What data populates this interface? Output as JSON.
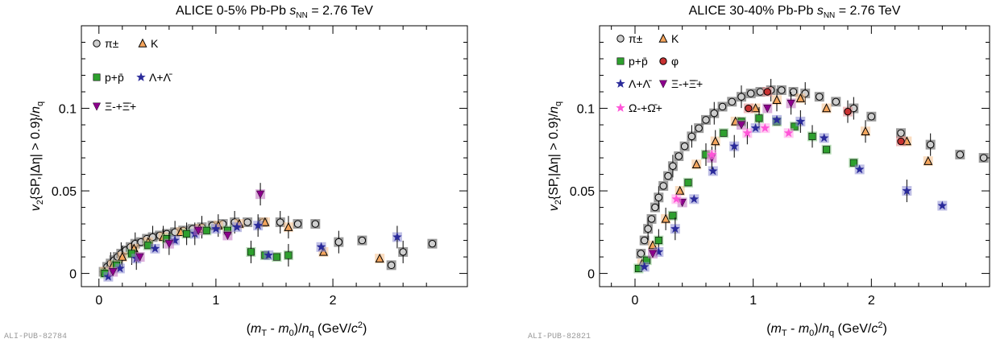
{
  "chart_data": [
    {
      "type": "scatter",
      "title": "ALICE 0-5% Pb-Pb √s_NN = 2.76 TeV",
      "title_parts": {
        "prefix": "ALICE 0-5% Pb-Pb",
        "s": "s",
        "sub": "NN",
        "suffix": " = 2.76 TeV"
      },
      "xlabel": "(m_T - m_0)/n_q (GeV/c^2)",
      "ylabel": "v_2{SP,|Δη| > 0.9}/n_q",
      "xlim": [
        -0.15,
        3.15
      ],
      "ylim": [
        -0.008,
        0.15
      ],
      "x_ticks": [
        0,
        1,
        2
      ],
      "y_ticks": [
        0,
        0.05,
        0.1
      ],
      "y_tick_labels": [
        "0",
        "0.05",
        "0.1"
      ],
      "watermark": "ALI-PUB-82784",
      "legend_position": "top-left",
      "series": [
        {
          "name": "π±",
          "marker": "circle",
          "color": "#cfcfcf",
          "syst_color": "#4a4a4a",
          "x": [
            0.04,
            0.07,
            0.1,
            0.13,
            0.16,
            0.19,
            0.23,
            0.27,
            0.31,
            0.36,
            0.41,
            0.46,
            0.52,
            0.58,
            0.65,
            0.72,
            0.8,
            0.88,
            0.97,
            1.06,
            1.16,
            1.27,
            1.4,
            1.55,
            1.7,
            1.85,
            2.05,
            2.25,
            2.5,
            2.6,
            2.85
          ],
          "y": [
            0.001,
            0.004,
            0.006,
            0.008,
            0.01,
            0.012,
            0.014,
            0.016,
            0.018,
            0.019,
            0.021,
            0.022,
            0.023,
            0.024,
            0.025,
            0.026,
            0.027,
            0.028,
            0.029,
            0.03,
            0.031,
            0.031,
            0.031,
            0.031,
            0.03,
            0.03,
            0.019,
            0.02,
            0.005,
            0.013,
            0.018
          ]
        },
        {
          "name": "K",
          "marker": "triangle",
          "color": "#f5a55c",
          "syst_color": "#f5c08a",
          "x": [
            0.05,
            0.12,
            0.2,
            0.3,
            0.42,
            0.55,
            0.7,
            0.86,
            1.02,
            1.2,
            1.42,
            1.62,
            1.92,
            2.4
          ],
          "y": [
            0.001,
            0.005,
            0.01,
            0.015,
            0.019,
            0.022,
            0.025,
            0.027,
            0.029,
            0.03,
            0.031,
            0.028,
            0.013,
            0.009
          ]
        },
        {
          "name": "p+p̄",
          "marker": "square",
          "color": "#2ea02e",
          "syst_color": "#7cc47c",
          "x": [
            0.05,
            0.15,
            0.28,
            0.42,
            0.58,
            0.75,
            0.92,
            1.1,
            1.3,
            1.42,
            1.52,
            1.62
          ],
          "y": [
            0.0,
            0.005,
            0.012,
            0.017,
            0.021,
            0.024,
            0.026,
            0.026,
            0.013,
            0.011,
            0.01,
            0.011
          ]
        },
        {
          "name": "Λ+Λ̄",
          "marker": "star",
          "color": "#2a2a9a",
          "syst_color": "#8a8ad0",
          "x": [
            0.08,
            0.18,
            0.32,
            0.48,
            0.65,
            0.82,
            1.0,
            1.18,
            1.36,
            1.45,
            1.9,
            2.55
          ],
          "y": [
            -0.002,
            0.003,
            0.009,
            0.015,
            0.02,
            0.024,
            0.027,
            0.028,
            0.029,
            0.011,
            0.016,
            0.022
          ]
        },
        {
          "name": "Ξ-+Ξ̄+",
          "marker": "triangle-down",
          "color": "#8b008b",
          "syst_color": "#c070c0",
          "x": [
            0.12,
            0.35,
            0.6,
            0.85,
            1.1,
            1.38
          ],
          "y": [
            0.001,
            0.01,
            0.018,
            0.026,
            0.023,
            0.048
          ]
        }
      ]
    },
    {
      "type": "scatter",
      "title": "ALICE 30-40% Pb-Pb √s_NN = 2.76 TeV",
      "title_parts": {
        "prefix": "ALICE 30-40% Pb-Pb",
        "s": "s",
        "sub": "NN",
        "suffix": " = 2.76 TeV"
      },
      "xlabel": "(m_T - m_0)/n_q (GeV/c^2)",
      "ylabel": "v_2{SP,|Δη| > 0.9}/n_q",
      "xlim": [
        -0.3,
        3.0
      ],
      "ylim": [
        -0.008,
        0.15
      ],
      "x_ticks": [
        0,
        1,
        2
      ],
      "y_ticks": [
        0,
        0.05,
        0.1
      ],
      "y_tick_labels": [
        "0",
        "0.05",
        "0.1"
      ],
      "watermark": "ALI-PUB-82821",
      "legend_position": "top-left",
      "series": [
        {
          "name": "π±",
          "marker": "circle",
          "color": "#cfcfcf",
          "syst_color": "#4a4a4a",
          "x": [
            0.05,
            0.08,
            0.11,
            0.14,
            0.17,
            0.2,
            0.24,
            0.28,
            0.32,
            0.37,
            0.42,
            0.48,
            0.54,
            0.6,
            0.67,
            0.74,
            0.82,
            0.9,
            0.98,
            1.06,
            1.15,
            1.24,
            1.34,
            1.44,
            1.56,
            1.7,
            1.85,
            2.0,
            2.25,
            2.5,
            2.75,
            2.95
          ],
          "y": [
            0.012,
            0.02,
            0.027,
            0.033,
            0.04,
            0.046,
            0.053,
            0.059,
            0.065,
            0.071,
            0.077,
            0.083,
            0.088,
            0.093,
            0.097,
            0.101,
            0.104,
            0.107,
            0.109,
            0.11,
            0.111,
            0.111,
            0.11,
            0.109,
            0.107,
            0.104,
            0.1,
            0.095,
            0.085,
            0.078,
            0.072,
            0.07
          ]
        },
        {
          "name": "K",
          "marker": "triangle",
          "color": "#f5a55c",
          "syst_color": "#f5c08a",
          "x": [
            0.06,
            0.15,
            0.26,
            0.38,
            0.52,
            0.68,
            0.85,
            1.02,
            1.2,
            1.4,
            1.62,
            1.95,
            2.3,
            2.48
          ],
          "y": [
            0.006,
            0.017,
            0.033,
            0.05,
            0.066,
            0.08,
            0.092,
            0.1,
            0.105,
            0.106,
            0.1,
            0.086,
            0.08,
            0.068
          ]
        },
        {
          "name": "p+p̄",
          "marker": "square",
          "color": "#2ea02e",
          "syst_color": "#7cc47c",
          "x": [
            0.03,
            0.1,
            0.2,
            0.32,
            0.45,
            0.6,
            0.75,
            0.9,
            1.05,
            1.2,
            1.35,
            1.5,
            1.62,
            1.85
          ],
          "y": [
            0.003,
            0.008,
            0.02,
            0.035,
            0.055,
            0.072,
            0.085,
            0.092,
            0.094,
            0.092,
            0.089,
            0.083,
            0.075,
            0.067
          ]
        },
        {
          "name": "φ",
          "marker": "circle",
          "color": "#c83232",
          "syst_color": "#e08a8a",
          "x": [
            0.96,
            1.12,
            1.8,
            2.25
          ],
          "y": [
            0.1,
            0.11,
            0.098,
            0.08
          ]
        },
        {
          "name": "Λ+Λ̄",
          "marker": "star",
          "color": "#2a2a9a",
          "syst_color": "#8a8ad0",
          "x": [
            0.08,
            0.2,
            0.34,
            0.5,
            0.66,
            0.84,
            1.02,
            1.2,
            1.4,
            1.6,
            1.9,
            2.3,
            2.6
          ],
          "y": [
            0.004,
            0.013,
            0.027,
            0.045,
            0.062,
            0.077,
            0.088,
            0.093,
            0.092,
            0.082,
            0.063,
            0.05,
            0.041
          ]
        },
        {
          "name": "Ξ-+Ξ̄+",
          "marker": "triangle-down",
          "color": "#8b008b",
          "syst_color": "#c070c0",
          "x": [
            0.15,
            0.4,
            0.65,
            0.9,
            1.12,
            1.32
          ],
          "y": [
            0.012,
            0.043,
            0.07,
            0.09,
            0.1,
            0.103
          ]
        },
        {
          "name": "Ω-+Ω̄+",
          "marker": "star",
          "color": "#ff55d8",
          "syst_color": "#ff9ee8",
          "x": [
            0.35,
            0.65,
            0.95,
            1.1,
            1.3
          ],
          "y": [
            0.045,
            0.072,
            0.085,
            0.088,
            0.085
          ]
        }
      ]
    }
  ]
}
